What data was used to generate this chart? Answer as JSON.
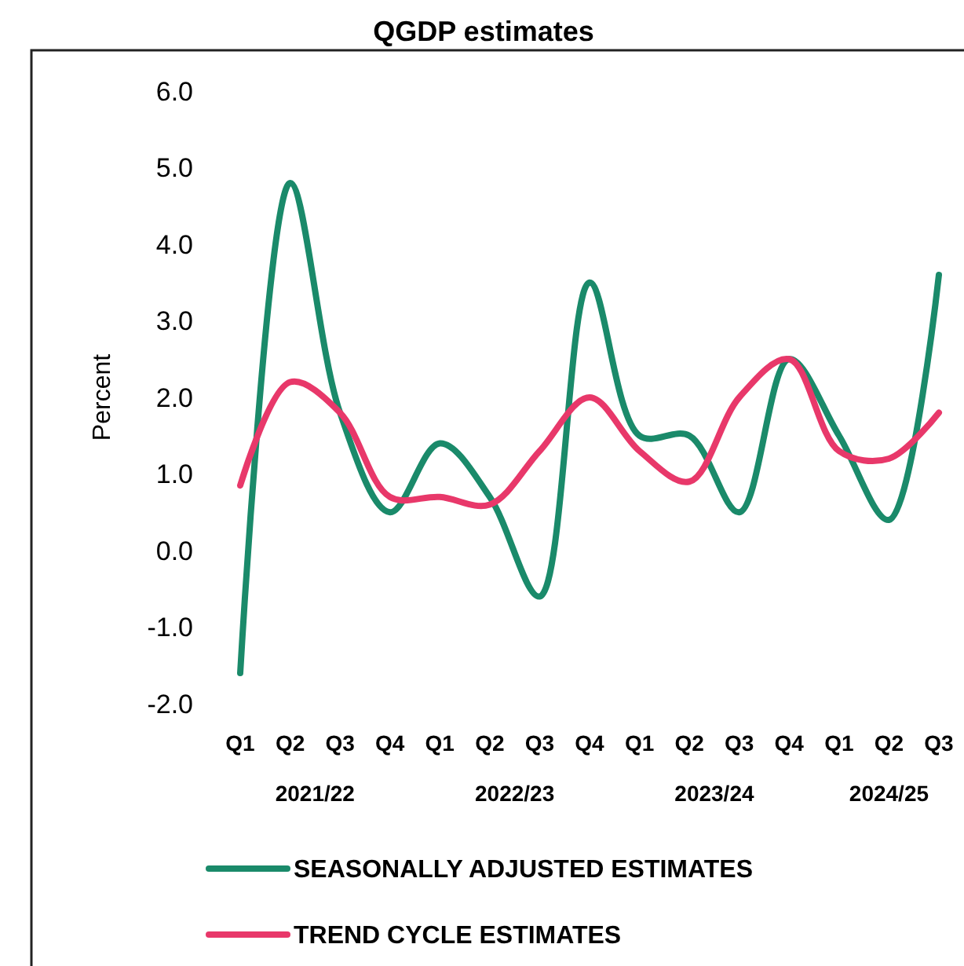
{
  "chart_data": {
    "type": "line",
    "title": "QGDP estimates",
    "ylabel": "Percent",
    "categories": [
      "Q1",
      "Q2",
      "Q3",
      "Q4",
      "Q1",
      "Q2",
      "Q3",
      "Q4",
      "Q1",
      "Q2",
      "Q3",
      "Q4",
      "Q1",
      "Q2",
      "Q3"
    ],
    "annotations": [
      "2021/22",
      "2022/23",
      "2023/24",
      "2024/25"
    ],
    "series": [
      {
        "name": "SEASONALLY ADJUSTED ESTIMATES",
        "color": "#1a8a6a",
        "values": [
          -1.6,
          4.8,
          1.8,
          0.5,
          1.4,
          0.7,
          -0.6,
          3.5,
          1.5,
          1.5,
          0.5,
          2.5,
          1.5,
          0.4,
          3.6
        ]
      },
      {
        "name": "TREND CYCLE ESTIMATES",
        "color": "#e8386a",
        "values": [
          0.85,
          2.2,
          1.8,
          0.7,
          0.7,
          0.6,
          1.3,
          2.0,
          1.3,
          0.9,
          2.0,
          2.5,
          1.3,
          1.2,
          1.8
        ]
      }
    ],
    "ylim": [
      -2.0,
      6.0
    ],
    "yticks": [
      {
        "value": -2,
        "label": "-2.0"
      },
      {
        "value": -1,
        "label": "-1.0"
      },
      {
        "value": 0,
        "label": "0.0"
      },
      {
        "value": 1,
        "label": "1.0"
      },
      {
        "value": 2,
        "label": "2.0"
      },
      {
        "value": 3,
        "label": "3.0"
      },
      {
        "value": 4,
        "label": "4.0"
      },
      {
        "value": 5,
        "label": "5.0"
      },
      {
        "value": 6,
        "label": "6.0"
      }
    ],
    "grid": false,
    "legend": "bottom",
    "marker": "none",
    "line_style": "solid"
  }
}
